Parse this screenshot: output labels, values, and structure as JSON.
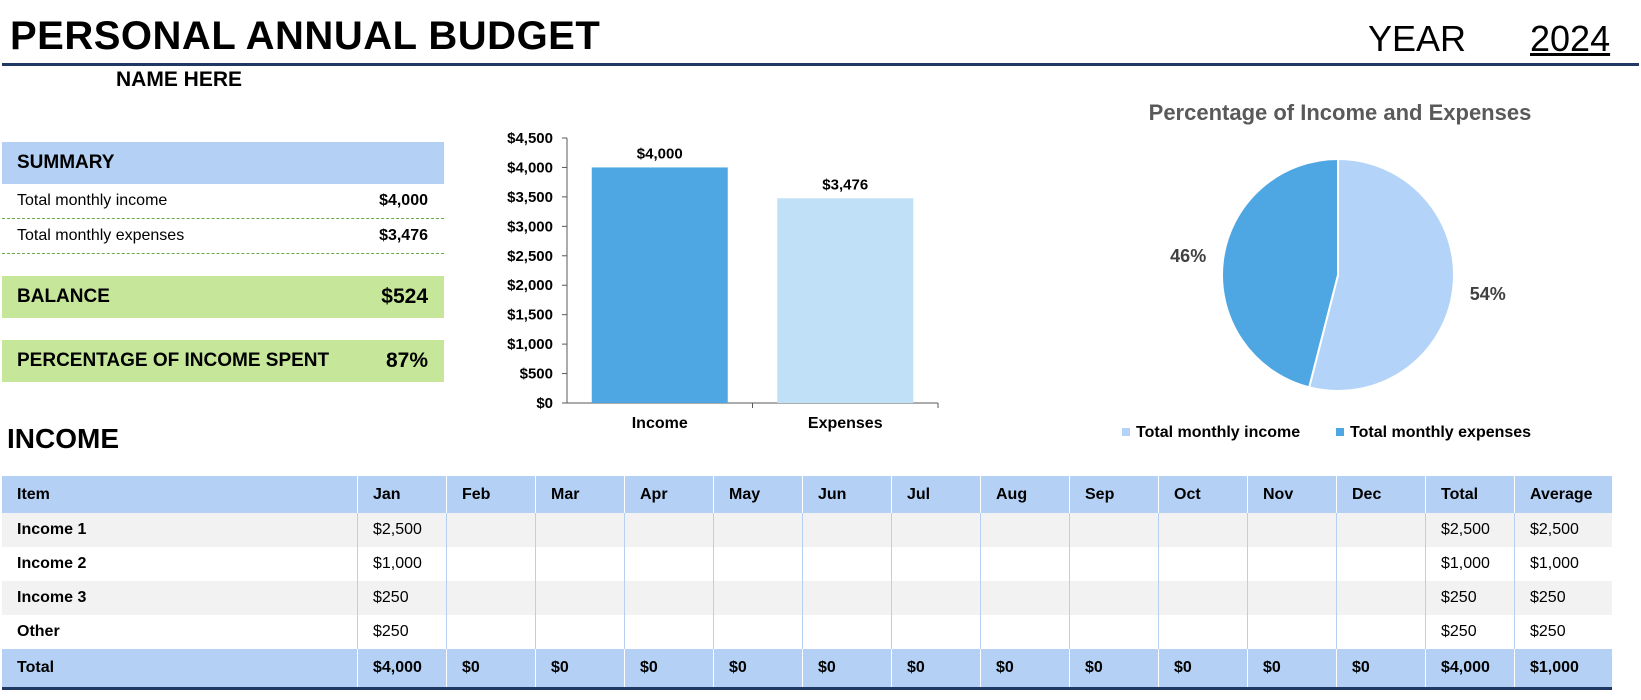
{
  "header": {
    "title": "PERSONAL ANNUAL BUDGET",
    "year_label": "YEAR",
    "year_value": "2024",
    "name": "NAME HERE"
  },
  "summary": {
    "heading": "SUMMARY",
    "rows": [
      {
        "label": "Total monthly income",
        "value": "$4,000"
      },
      {
        "label": "Total monthly expenses",
        "value": "$3,476"
      }
    ],
    "balance": {
      "label": "BALANCE",
      "value": "$524"
    },
    "percent_spent": {
      "label": "PERCENTAGE OF INCOME SPENT",
      "value": "87%"
    }
  },
  "income_section": {
    "heading": "INCOME",
    "columns": [
      "Item",
      "Jan",
      "Feb",
      "Mar",
      "Apr",
      "May",
      "Jun",
      "Jul",
      "Aug",
      "Sep",
      "Oct",
      "Nov",
      "Dec",
      "Total",
      "Average"
    ],
    "rows": [
      [
        "Income 1",
        "$2,500",
        "",
        "",
        "",
        "",
        "",
        "",
        "",
        "",
        "",
        "",
        "",
        "$2,500",
        "$2,500"
      ],
      [
        "Income 2",
        "$1,000",
        "",
        "",
        "",
        "",
        "",
        "",
        "",
        "",
        "",
        "",
        "",
        "$1,000",
        "$1,000"
      ],
      [
        "Income 3",
        "$250",
        "",
        "",
        "",
        "",
        "",
        "",
        "",
        "",
        "",
        "",
        "",
        "$250",
        "$250"
      ],
      [
        "Other",
        "$250",
        "",
        "",
        "",
        "",
        "",
        "",
        "",
        "",
        "",
        "",
        "",
        "$250",
        "$250"
      ]
    ],
    "total_row": [
      "Total",
      "$4,000",
      "$0",
      "$0",
      "$0",
      "$0",
      "$0",
      "$0",
      "$0",
      "$0",
      "$0",
      "$0",
      "$0",
      "$4,000",
      "$1,000"
    ]
  },
  "colors": {
    "accent_blue": "#4ea7e3",
    "light_blue": "#bfe0f6",
    "header_blue": "#b4d1f5",
    "green": "#c6e79a",
    "navy": "#1f3864",
    "pie_light": "#b3d4f8",
    "pie_dark": "#4ea7e3"
  },
  "chart_data": [
    {
      "type": "bar",
      "categories": [
        "Income",
        "Expenses"
      ],
      "values": [
        4000,
        3476
      ],
      "data_labels": [
        "$4,000",
        "$3,476"
      ],
      "ylim": [
        0,
        4500
      ],
      "yticks": [
        "$0",
        "$500",
        "$1,000",
        "$1,500",
        "$2,000",
        "$2,500",
        "$3,000",
        "$3,500",
        "$4,000",
        "$4,500"
      ],
      "grid": false,
      "colors": [
        "#4ea7e3",
        "#bfe0f6"
      ]
    },
    {
      "type": "pie",
      "title": "Percentage of Income and Expenses",
      "labels": [
        "Total monthly income",
        "Total monthly expenses"
      ],
      "values": [
        54,
        46
      ],
      "data_labels": [
        "54%",
        "46%"
      ],
      "colors": [
        "#b3d4f8",
        "#4ea7e3"
      ],
      "legend": "bottom"
    }
  ]
}
